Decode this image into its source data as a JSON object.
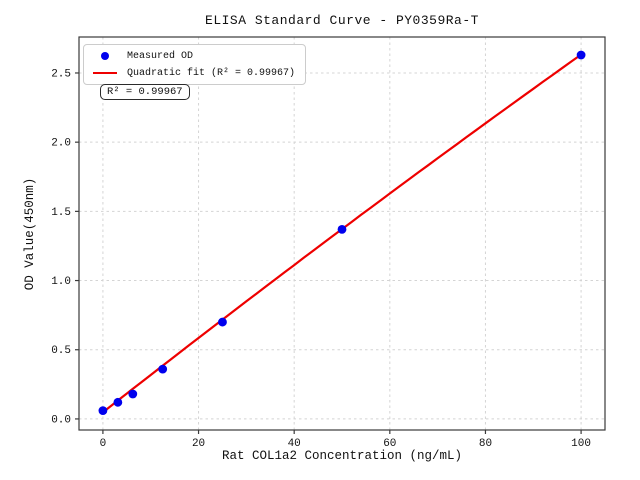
{
  "chart_data": {
    "type": "scatter",
    "title": "ELISA Standard Curve - PY0359Ra-T",
    "xlabel": "Rat COL1a2 Concentration (ng/mL)",
    "ylabel": "OD Value(450nm)",
    "xlim": [
      -5,
      105
    ],
    "ylim": [
      -0.08,
      2.76
    ],
    "xticks": [
      0,
      20,
      40,
      60,
      80,
      100
    ],
    "yticks": [
      0.0,
      0.5,
      1.0,
      1.5,
      2.0,
      2.5
    ],
    "xtick_labels": [
      "0",
      "20",
      "40",
      "60",
      "80",
      "100"
    ],
    "ytick_labels": [
      "0.0",
      "0.5",
      "1.0",
      "1.5",
      "2.0",
      "2.5"
    ],
    "grid": true,
    "grid_style": "dashed",
    "legend_position": "upper left",
    "annotation": "R² = 0.99967",
    "r_squared": 0.99967,
    "series": [
      {
        "name": "Measured OD",
        "type": "scatter",
        "color": "#0000ee",
        "x": [
          0,
          3.125,
          6.25,
          12.5,
          25,
          50,
          100
        ],
        "y": [
          0.06,
          0.12,
          0.18,
          0.36,
          0.7,
          1.37,
          2.63
        ]
      },
      {
        "name": "Quadratic fit (R² = 0.99967)",
        "type": "line",
        "color": "#ee0000",
        "fit_coefficients": {
          "a": 0.048,
          "b": 0.0271,
          "c": -1.25e-05
        },
        "x_range": [
          0,
          100
        ]
      }
    ]
  },
  "legend": {
    "items": [
      {
        "label": "Measured OD",
        "marker": "dot",
        "color": "#0000ee"
      },
      {
        "label": "Quadratic fit (R² = 0.99967)",
        "marker": "line",
        "color": "#ee0000"
      }
    ]
  },
  "colors": {
    "background": "#ffffff",
    "grid": "#d4d4d4",
    "spine": "#3a3a3a",
    "tick_text": "#111111",
    "point": "#0000ee",
    "fit_line": "#ee0000"
  }
}
